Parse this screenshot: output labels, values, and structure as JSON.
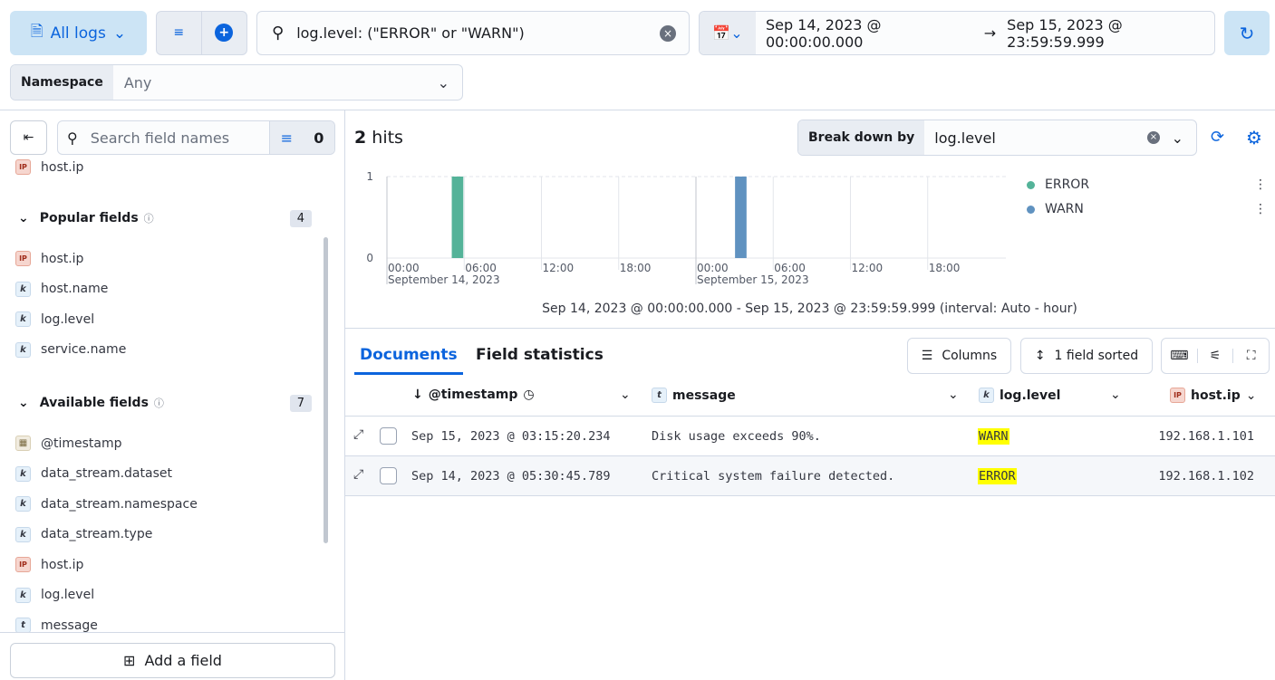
{
  "toolbar": {
    "data_view": "All logs",
    "query": "log.level: (\"ERROR\" or \"WARN\")",
    "time_start": "Sep 14, 2023 @ 00:00:00.000",
    "time_arrow": "→",
    "time_end": "Sep 15, 2023 @ 23:59:59.999",
    "namespace_label": "Namespace",
    "namespace_value": "Any"
  },
  "sidebar": {
    "search_placeholder": "Search field names",
    "filter_count": "0",
    "top_item": "host.ip",
    "popular_label": "Popular fields",
    "popular_count": "4",
    "popular": [
      {
        "type": "ip",
        "name": "host.ip"
      },
      {
        "type": "k",
        "name": "host.name"
      },
      {
        "type": "k",
        "name": "log.level"
      },
      {
        "type": "k",
        "name": "service.name"
      }
    ],
    "available_label": "Available fields",
    "available_count": "7",
    "available": [
      {
        "type": "d",
        "name": "@timestamp"
      },
      {
        "type": "k",
        "name": "data_stream.dataset"
      },
      {
        "type": "k",
        "name": "data_stream.namespace"
      },
      {
        "type": "k",
        "name": "data_stream.type"
      },
      {
        "type": "ip",
        "name": "host.ip"
      },
      {
        "type": "k",
        "name": "log.level"
      },
      {
        "type": "t",
        "name": "message"
      }
    ],
    "add_field": "Add a field"
  },
  "hits": {
    "count": "2",
    "label": "hits"
  },
  "breakdown": {
    "label": "Break down by",
    "value": "log.level"
  },
  "chart_data": {
    "type": "bar",
    "stacked": true,
    "x_unit": "hour",
    "xlim": [
      "2023-09-14 00:00",
      "2023-09-16 00:00"
    ],
    "ylim": [
      0,
      1
    ],
    "y_ticks": [
      "0",
      "1"
    ],
    "x_ticks": [
      "00:00",
      "06:00",
      "12:00",
      "18:00",
      "00:00",
      "06:00",
      "12:00",
      "18:00"
    ],
    "x_day_labels": [
      "September 14, 2023",
      "September 15, 2023"
    ],
    "series": [
      {
        "name": "ERROR",
        "color": "#54b399",
        "points": [
          {
            "x": "2023-09-14 05:00",
            "y": 1
          }
        ]
      },
      {
        "name": "WARN",
        "color": "#6092c0",
        "points": [
          {
            "x": "2023-09-15 03:00",
            "y": 1
          }
        ]
      }
    ],
    "legend": "right",
    "caption": "Sep 14, 2023 @ 00:00:00.000 - Sep 15, 2023 @ 23:59:59.999 (interval: Auto - hour)"
  },
  "tabs": {
    "documents": "Documents",
    "field_stats": "Field statistics"
  },
  "grid": {
    "columns_btn": "Columns",
    "sorted_btn": "1 field sorted",
    "headers": [
      "@timestamp",
      "message",
      "log.level",
      "host.ip"
    ],
    "rows": [
      {
        "timestamp": "Sep 15, 2023 @ 03:15:20.234",
        "message": "Disk usage exceeds 90%.",
        "level": "WARN",
        "ip": "192.168.1.101"
      },
      {
        "timestamp": "Sep 14, 2023 @ 05:30:45.789",
        "message": "Critical system failure detected.",
        "level": "ERROR",
        "ip": "192.168.1.102"
      }
    ]
  }
}
